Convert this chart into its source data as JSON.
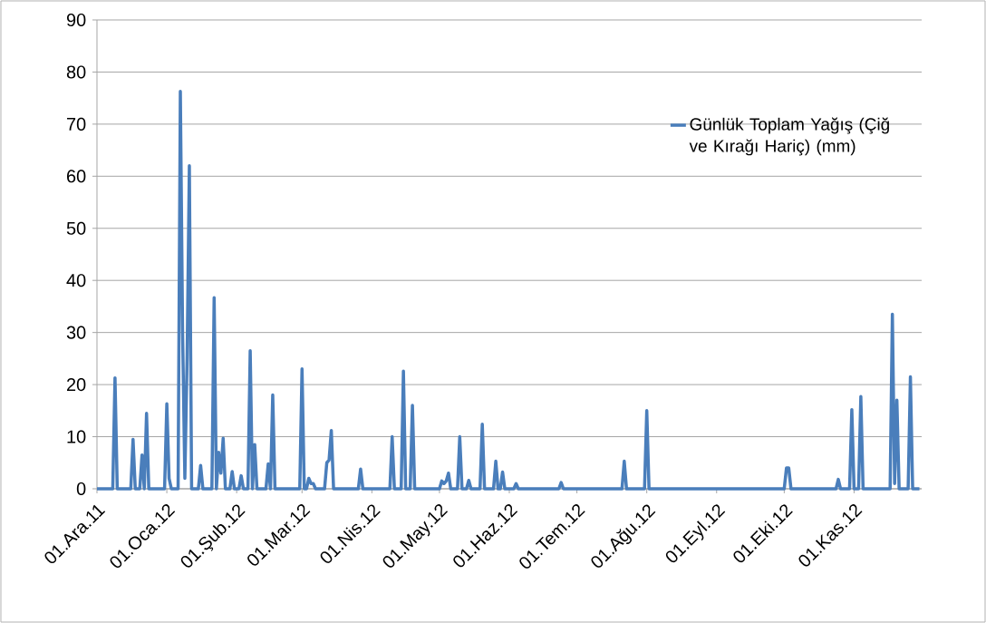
{
  "chart_data": {
    "type": "line",
    "xlim": [
      "2011-12-01",
      "2012-12-01"
    ],
    "ylim": [
      0,
      90
    ],
    "yticks": [
      0,
      10,
      20,
      30,
      40,
      50,
      60,
      70,
      80,
      90
    ],
    "xticks": [
      {
        "value": "2011-12-01",
        "label": "01.Ara.11"
      },
      {
        "value": "2012-01-01",
        "label": "01.Oca.12"
      },
      {
        "value": "2012-02-01",
        "label": "01.Şub.12"
      },
      {
        "value": "2012-03-01",
        "label": "01.Mar.12"
      },
      {
        "value": "2012-04-01",
        "label": "01.Nis.12"
      },
      {
        "value": "2012-05-01",
        "label": "01.May.12"
      },
      {
        "value": "2012-06-01",
        "label": "01.Haz.12"
      },
      {
        "value": "2012-07-01",
        "label": "01.Tem.12"
      },
      {
        "value": "2012-08-01",
        "label": "01.Ağu.12"
      },
      {
        "value": "2012-09-01",
        "label": "01.Eyl.12"
      },
      {
        "value": "2012-10-01",
        "label": "01.Eki.12"
      },
      {
        "value": "2012-11-01",
        "label": "01.Kas.12"
      }
    ],
    "grid": "y",
    "legend": "right",
    "marker": "none",
    "line_style": "solid",
    "series": [
      {
        "name": "Günlük Toplam Yağış (Çiğ ve Kırağı Hariç) (mm)",
        "color": "#4a7ebb",
        "x": [
          "2011-12-01",
          "2011-12-08",
          "2011-12-09",
          "2011-12-10",
          "2011-12-16",
          "2011-12-17",
          "2011-12-18",
          "2011-12-20",
          "2011-12-21",
          "2011-12-22",
          "2011-12-23",
          "2011-12-24",
          "2011-12-31",
          "2012-01-01",
          "2012-01-02",
          "2012-01-03",
          "2012-01-06",
          "2012-01-07",
          "2012-01-08",
          "2012-01-09",
          "2012-01-10",
          "2012-01-11",
          "2012-01-12",
          "2012-01-15",
          "2012-01-16",
          "2012-01-17",
          "2012-01-21",
          "2012-01-22",
          "2012-01-23",
          "2012-01-24",
          "2012-01-25",
          "2012-01-26",
          "2012-01-27",
          "2012-01-29",
          "2012-01-30",
          "2012-01-31",
          "2012-02-02",
          "2012-02-03",
          "2012-02-04",
          "2012-02-06",
          "2012-02-07",
          "2012-02-08",
          "2012-02-09",
          "2012-02-10",
          "2012-02-14",
          "2012-02-15",
          "2012-02-16",
          "2012-02-17",
          "2012-02-18",
          "2012-02-29",
          "2012-03-01",
          "2012-03-02",
          "2012-03-03",
          "2012-03-04",
          "2012-03-05",
          "2012-03-06",
          "2012-03-07",
          "2012-03-11",
          "2012-03-12",
          "2012-03-13",
          "2012-03-14",
          "2012-03-15",
          "2012-03-26",
          "2012-03-27",
          "2012-03-28",
          "2012-04-09",
          "2012-04-10",
          "2012-04-11",
          "2012-04-14",
          "2012-04-15",
          "2012-04-16",
          "2012-04-18",
          "2012-04-19",
          "2012-04-20",
          "2012-05-01",
          "2012-05-02",
          "2012-05-03",
          "2012-05-04",
          "2012-05-05",
          "2012-05-06",
          "2012-05-09",
          "2012-05-10",
          "2012-05-11",
          "2012-05-13",
          "2012-05-14",
          "2012-05-15",
          "2012-05-19",
          "2012-05-20",
          "2012-05-21",
          "2012-05-25",
          "2012-05-26",
          "2012-05-27",
          "2012-05-28",
          "2012-05-29",
          "2012-05-30",
          "2012-06-03",
          "2012-06-04",
          "2012-06-05",
          "2012-06-23",
          "2012-06-24",
          "2012-06-25",
          "2012-07-21",
          "2012-07-22",
          "2012-07-23",
          "2012-07-31",
          "2012-08-01",
          "2012-08-02",
          "2012-10-01",
          "2012-10-02",
          "2012-10-03",
          "2012-10-04",
          "2012-10-24",
          "2012-10-25",
          "2012-10-26",
          "2012-10-30",
          "2012-10-31",
          "2012-11-01",
          "2012-11-03",
          "2012-11-04",
          "2012-11-05",
          "2012-11-17",
          "2012-11-18",
          "2012-11-19",
          "2012-11-20",
          "2012-11-21",
          "2012-11-25",
          "2012-11-26",
          "2012-11-27",
          "2012-11-30"
        ],
        "values": [
          0,
          0,
          21.3,
          0,
          0,
          9.5,
          0,
          0,
          6.5,
          0,
          14.5,
          0,
          0,
          16.3,
          2,
          0,
          0,
          76.3,
          30,
          2,
          25,
          62,
          0,
          0,
          4.5,
          0,
          0,
          36.7,
          0,
          7,
          3,
          9.7,
          0,
          0,
          3.3,
          0,
          0,
          2.5,
          0,
          0,
          26.5,
          0,
          8.5,
          0,
          0,
          4.8,
          0,
          18,
          0,
          0,
          23,
          0,
          0,
          2,
          1,
          1,
          0,
          0,
          5,
          5.5,
          11.2,
          0,
          0,
          3.8,
          0,
          0,
          10,
          0,
          0,
          22.6,
          0,
          0,
          16,
          0,
          0,
          1.5,
          1,
          1.5,
          3,
          0,
          0,
          10,
          0,
          0,
          1.6,
          0,
          0,
          12.4,
          0,
          0,
          5.3,
          0,
          0,
          3.2,
          0,
          0,
          1,
          0,
          0,
          1.2,
          0,
          0,
          5.3,
          0,
          0,
          15,
          0,
          0,
          4,
          4,
          0,
          0,
          1.8,
          0,
          0,
          15.2,
          0,
          0,
          17.7,
          0,
          0,
          33.5,
          1,
          17,
          0,
          0,
          21.5,
          0,
          0
        ]
      }
    ]
  }
}
